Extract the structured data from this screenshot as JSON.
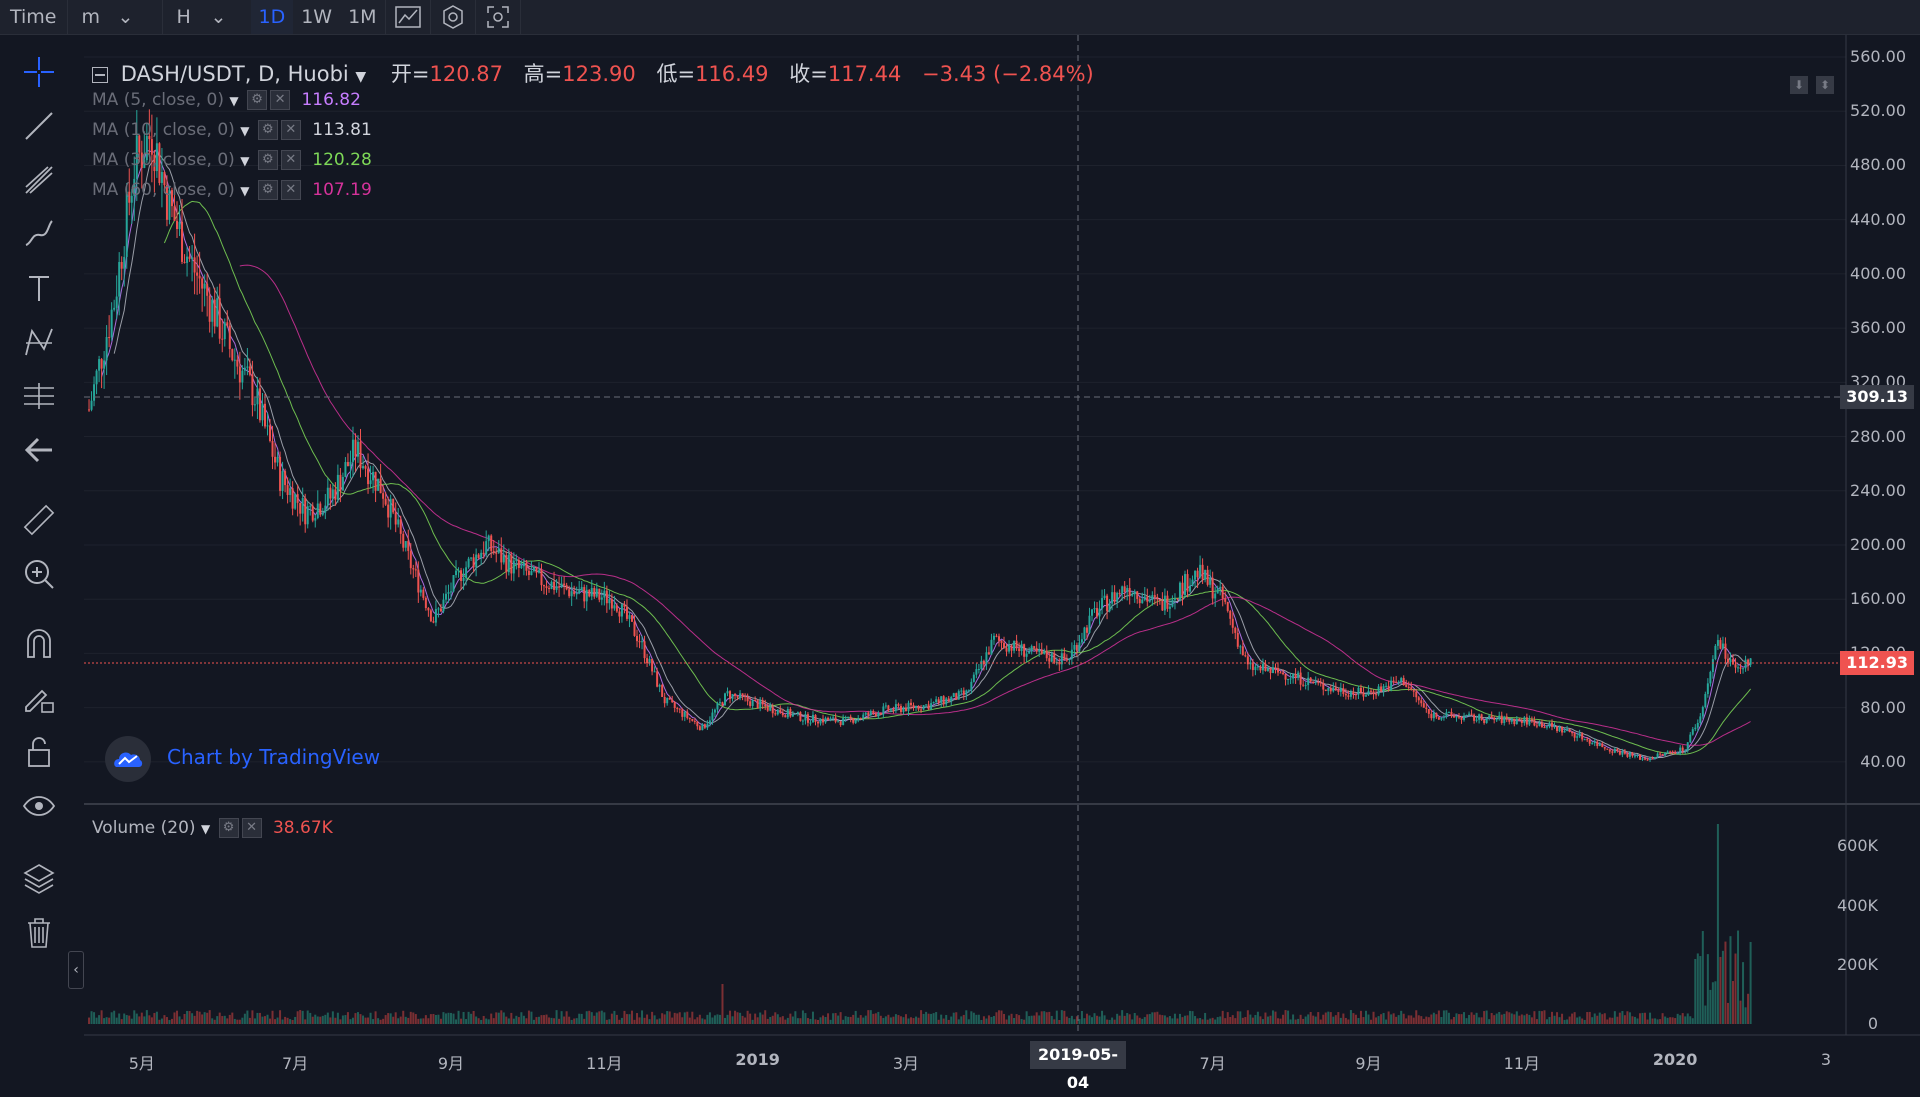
{
  "toolbar": {
    "time_label": "Time",
    "minute_label": "m",
    "hour_label": "H",
    "intervals": [
      "1D",
      "1W",
      "1M"
    ],
    "active_interval": "1D"
  },
  "legend": {
    "symbol": "DASH/USDT, D, Huobi",
    "open_label": "开=",
    "open": "120.87",
    "high_label": "高=",
    "high": "123.90",
    "low_label": "低=",
    "low": "116.49",
    "close_label": "收=",
    "close": "117.44",
    "change": "−3.43 (−2.84%)"
  },
  "ma_indicators": [
    {
      "label": "MA (5, close, 0)",
      "value": "116.82",
      "color": "#c77dff"
    },
    {
      "label": "MA (10, close, 0)",
      "value": "113.81",
      "color": "#d1d4dc"
    },
    {
      "label": "MA (30, close, 0)",
      "value": "120.28",
      "color": "#7ed957"
    },
    {
      "label": "MA (60, close, 0)",
      "value": "107.19",
      "color": "#d6339b"
    }
  ],
  "volume_legend": {
    "label": "Volume (20)",
    "value": "38.67K"
  },
  "watermark": "Chart by TradingView",
  "crosshair": {
    "price": "309.13",
    "date": "2019-05-04"
  },
  "last_price_tag": "112.93",
  "colors": {
    "up": "#26a69a",
    "down": "#ef5350",
    "background": "#131722",
    "accent": "#2962ff"
  },
  "chart_data": {
    "type": "candlestick",
    "title": "DASH/USDT, D, Huobi",
    "price_axis": [
      "560.00",
      "520.00",
      "480.00",
      "440.00",
      "400.00",
      "360.00",
      "320.00",
      "280.00",
      "240.00",
      "200.00",
      "160.00",
      "120.00",
      "80.00",
      "40.00"
    ],
    "volume_axis": [
      "600K",
      "400K",
      "200K",
      "0"
    ],
    "time_axis": [
      "5月",
      "7月",
      "9月",
      "11月",
      "2019",
      "3月",
      "5月",
      "7月",
      "9月",
      "11月",
      "2020",
      "3"
    ],
    "ylim": [
      0,
      570
    ],
    "close_series": [
      {
        "x": "2018-04-10",
        "close": 300
      },
      {
        "x": "2018-04-20",
        "close": 380
      },
      {
        "x": "2018-04-28",
        "close": 480
      },
      {
        "x": "2018-05-05",
        "close": 505
      },
      {
        "x": "2018-05-12",
        "close": 450
      },
      {
        "x": "2018-05-20",
        "close": 410
      },
      {
        "x": "2018-05-28",
        "close": 380
      },
      {
        "x": "2018-06-05",
        "close": 345
      },
      {
        "x": "2018-06-15",
        "close": 310
      },
      {
        "x": "2018-06-25",
        "close": 250
      },
      {
        "x": "2018-07-05",
        "close": 225
      },
      {
        "x": "2018-07-15",
        "close": 235
      },
      {
        "x": "2018-07-25",
        "close": 270
      },
      {
        "x": "2018-08-05",
        "close": 240
      },
      {
        "x": "2018-08-15",
        "close": 190
      },
      {
        "x": "2018-08-25",
        "close": 145
      },
      {
        "x": "2018-09-05",
        "close": 180
      },
      {
        "x": "2018-09-15",
        "close": 200
      },
      {
        "x": "2018-09-25",
        "close": 185
      },
      {
        "x": "2018-10-05",
        "close": 175
      },
      {
        "x": "2018-10-20",
        "close": 165
      },
      {
        "x": "2018-11-05",
        "close": 160
      },
      {
        "x": "2018-11-15",
        "close": 130
      },
      {
        "x": "2018-11-25",
        "close": 85
      },
      {
        "x": "2018-12-10",
        "close": 65
      },
      {
        "x": "2018-12-20",
        "close": 90
      },
      {
        "x": "2019-01-05",
        "close": 80
      },
      {
        "x": "2019-01-20",
        "close": 72
      },
      {
        "x": "2019-02-05",
        "close": 70
      },
      {
        "x": "2019-02-20",
        "close": 78
      },
      {
        "x": "2019-03-10",
        "close": 82
      },
      {
        "x": "2019-03-25",
        "close": 90
      },
      {
        "x": "2019-04-05",
        "close": 130
      },
      {
        "x": "2019-04-20",
        "close": 120
      },
      {
        "x": "2019-05-04",
        "close": 115
      },
      {
        "x": "2019-05-15",
        "close": 150
      },
      {
        "x": "2019-05-28",
        "close": 170
      },
      {
        "x": "2019-06-10",
        "close": 155
      },
      {
        "x": "2019-06-25",
        "close": 180
      },
      {
        "x": "2019-07-05",
        "close": 160
      },
      {
        "x": "2019-07-15",
        "close": 110
      },
      {
        "x": "2019-07-30",
        "close": 105
      },
      {
        "x": "2019-08-15",
        "close": 95
      },
      {
        "x": "2019-08-30",
        "close": 90
      },
      {
        "x": "2019-09-15",
        "close": 100
      },
      {
        "x": "2019-09-25",
        "close": 75
      },
      {
        "x": "2019-10-15",
        "close": 72
      },
      {
        "x": "2019-11-05",
        "close": 70
      },
      {
        "x": "2019-11-20",
        "close": 62
      },
      {
        "x": "2019-12-05",
        "close": 50
      },
      {
        "x": "2019-12-20",
        "close": 42
      },
      {
        "x": "2020-01-05",
        "close": 50
      },
      {
        "x": "2020-01-12",
        "close": 80
      },
      {
        "x": "2020-01-18",
        "close": 130
      },
      {
        "x": "2020-01-25",
        "close": 105
      },
      {
        "x": "2020-02-01",
        "close": 117
      }
    ]
  }
}
